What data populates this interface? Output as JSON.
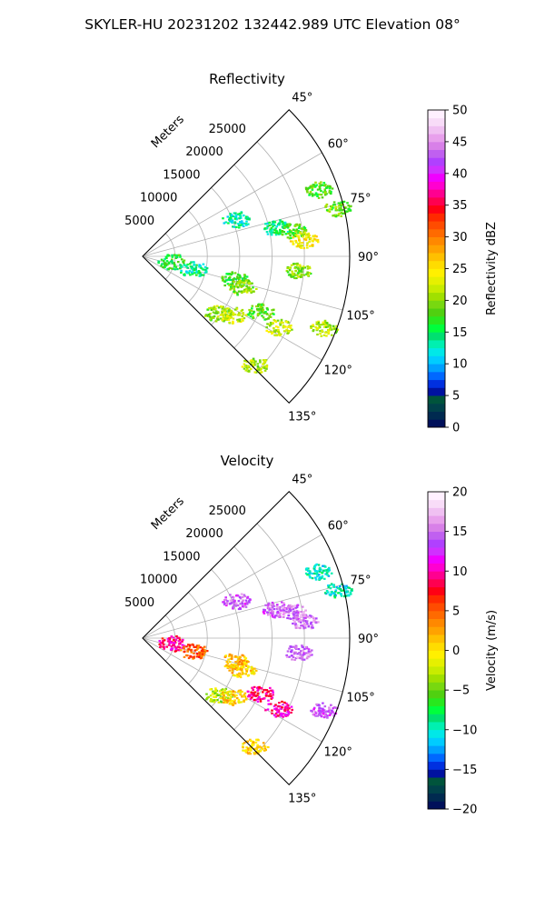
{
  "figure": {
    "suptitle": "SKYLER-HU  20231202  132442.989 UTC Elevation 08°"
  },
  "chart_data": [
    {
      "type": "heatmap",
      "subtype": "polar-sector (PPI)",
      "title": "Reflectivity",
      "radial_label": "Meters",
      "radial_ticks": [
        "5000",
        "10000",
        "15000",
        "20000",
        "25000"
      ],
      "azimuth_ticks": [
        "45°",
        "60°",
        "75°",
        "90°",
        "105°",
        "120°",
        "135°"
      ],
      "azimuth_range": [
        45,
        135
      ],
      "max_range_m": 32000,
      "grid": true,
      "colorbar": {
        "label": "Reflectivity dBZ",
        "min": 0,
        "max": 50,
        "ticks": [
          "0",
          "5",
          "10",
          "15",
          "20",
          "25",
          "30",
          "35",
          "40",
          "45",
          "50"
        ],
        "colors": [
          "#00105a",
          "#002a50",
          "#00414a",
          "#00543c",
          "#0012a0",
          "#0030e0",
          "#0068ff",
          "#00a0ff",
          "#00ccff",
          "#00e8e8",
          "#00f0b0",
          "#00e070",
          "#00ff3c",
          "#28e81e",
          "#50d010",
          "#78d810",
          "#a0e000",
          "#c8ec00",
          "#e6f000",
          "#fff000",
          "#ffdc00",
          "#ffc000",
          "#ffa200",
          "#ff8800",
          "#ff6a00",
          "#ff4c00",
          "#ff2a00",
          "#ff0014",
          "#ff0050",
          "#ff0090",
          "#ff00d0",
          "#f000ff",
          "#d030ff",
          "#b040ff",
          "#c060f0",
          "#d880e8",
          "#e8a0ec",
          "#f0c0f2",
          "#f8dcf8",
          "#fff0ff"
        ]
      },
      "echoes": [
        {
          "az": 77.5,
          "r": 21000,
          "value": 14
        },
        {
          "az": 80,
          "r": 23500,
          "value": 18
        },
        {
          "az": 84,
          "r": 25000,
          "value": 24
        },
        {
          "az": 95,
          "r": 24000,
          "value": 20
        },
        {
          "az": 69,
          "r": 29000,
          "value": 18
        },
        {
          "az": 76,
          "r": 31000,
          "value": 19
        },
        {
          "az": 99,
          "r": 4500,
          "value": 16
        },
        {
          "az": 104,
          "r": 8000,
          "value": 14
        },
        {
          "az": 104,
          "r": 14500,
          "value": 17
        },
        {
          "az": 107,
          "r": 16000,
          "value": 20
        },
        {
          "az": 115,
          "r": 20000,
          "value": 18
        },
        {
          "az": 117.5,
          "r": 23500,
          "value": 22
        },
        {
          "az": 127,
          "r": 14500,
          "value": 20
        },
        {
          "az": 123,
          "r": 16500,
          "value": 22
        },
        {
          "az": 111.5,
          "r": 30000,
          "value": 21
        },
        {
          "az": 134,
          "r": 24000,
          "value": 21
        },
        {
          "az": 68,
          "r": 15500,
          "value": 13
        }
      ]
    },
    {
      "type": "heatmap",
      "subtype": "polar-sector (PPI)",
      "title": "Velocity",
      "radial_label": "Meters",
      "radial_ticks": [
        "5000",
        "10000",
        "15000",
        "20000",
        "25000"
      ],
      "azimuth_ticks": [
        "45°",
        "60°",
        "75°",
        "90°",
        "105°",
        "120°",
        "135°"
      ],
      "azimuth_range": [
        45,
        135
      ],
      "max_range_m": 32000,
      "grid": true,
      "colorbar": {
        "label": "Velocity (m/s)",
        "min": -20,
        "max": 20,
        "ticks": [
          "−20",
          "−15",
          "−10",
          "−5",
          "0",
          "5",
          "10",
          "15",
          "20"
        ],
        "colors": [
          "#00105a",
          "#002a50",
          "#00414a",
          "#00543c",
          "#0012a0",
          "#0030e0",
          "#0068ff",
          "#00a0ff",
          "#00ccff",
          "#00e8e8",
          "#00f0b0",
          "#00e070",
          "#00ff3c",
          "#28e81e",
          "#50d010",
          "#78d810",
          "#a0e000",
          "#c8ec00",
          "#e6f000",
          "#fff000",
          "#ffdc00",
          "#ffc000",
          "#ffa200",
          "#ff8800",
          "#ff6a00",
          "#ff4c00",
          "#ff2a00",
          "#ff0014",
          "#ff0050",
          "#ff0090",
          "#ff00d0",
          "#f000ff",
          "#d030ff",
          "#b040ff",
          "#c060f0",
          "#d880e8",
          "#e8a0ec",
          "#f0c0f2",
          "#f8dcf8",
          "#fff0ff"
        ]
      },
      "echoes": [
        {
          "az": 77.5,
          "r": 21000,
          "value": 14
        },
        {
          "az": 80,
          "r": 23500,
          "value": 15
        },
        {
          "az": 84,
          "r": 25000,
          "value": 15
        },
        {
          "az": 95,
          "r": 24000,
          "value": 15
        },
        {
          "az": 69,
          "r": 29000,
          "value": -10
        },
        {
          "az": 76,
          "r": 31000,
          "value": -10
        },
        {
          "az": 99,
          "r": 4500,
          "value": 9
        },
        {
          "az": 104,
          "r": 8000,
          "value": 5
        },
        {
          "az": 104,
          "r": 14500,
          "value": 2
        },
        {
          "az": 107,
          "r": 16000,
          "value": 1
        },
        {
          "az": 115,
          "r": 20000,
          "value": 9
        },
        {
          "az": 117.5,
          "r": 23500,
          "value": 10
        },
        {
          "az": 127,
          "r": 14500,
          "value": -3
        },
        {
          "az": 123,
          "r": 16500,
          "value": 1
        },
        {
          "az": 111.5,
          "r": 30000,
          "value": 14
        },
        {
          "az": 134,
          "r": 24000,
          "value": 1
        },
        {
          "az": 68,
          "r": 15500,
          "value": 14
        }
      ]
    }
  ]
}
